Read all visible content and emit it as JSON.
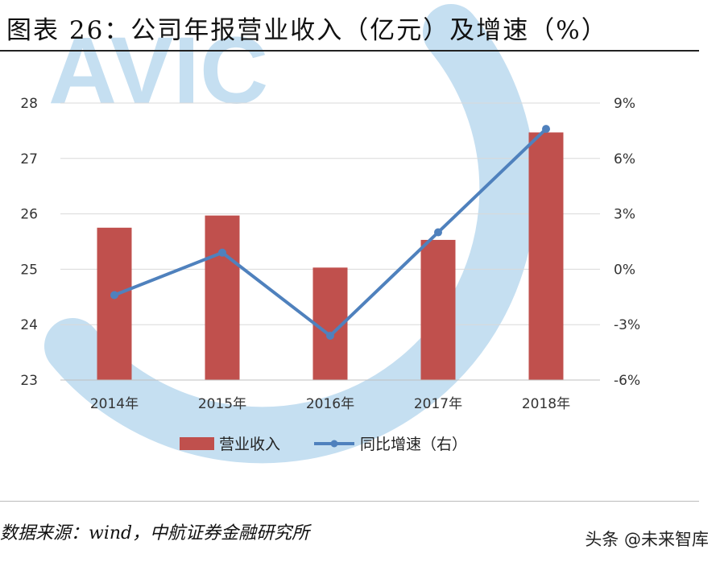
{
  "header": {
    "title": "图表 26：公司年报营业收入（亿元）及增速（%）"
  },
  "watermark": {
    "text": "AVIC",
    "color": "#c5dff1"
  },
  "chart_data": {
    "type": "bar",
    "categories": [
      "2014年",
      "2015年",
      "2016年",
      "2017年",
      "2018年"
    ],
    "series": [
      {
        "name": "营业收入",
        "type": "bar",
        "axis": "left",
        "color": "#c0504d",
        "values": [
          25.75,
          25.97,
          25.03,
          25.53,
          27.47
        ]
      },
      {
        "name": "同比增速（右）",
        "type": "line",
        "axis": "right",
        "color": "#4f81bd",
        "values": [
          -1.4,
          0.9,
          -3.6,
          2.0,
          7.6
        ]
      }
    ],
    "y_left": {
      "ylim": [
        23,
        28
      ],
      "ticks": [
        "23",
        "24",
        "25",
        "26",
        "27",
        "28"
      ]
    },
    "y_right": {
      "ylim": [
        -6,
        9
      ],
      "ticks": [
        "-6%",
        "-3%",
        "0%",
        "3%",
        "6%",
        "9%"
      ]
    },
    "grid": true,
    "legend": "bottom"
  },
  "footer": {
    "source": "数据来源：wind，中航证券金融研究所",
    "credit": "头条 @未来智库"
  }
}
